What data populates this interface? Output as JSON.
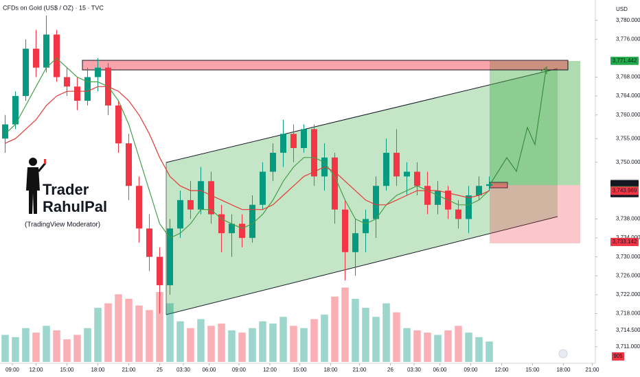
{
  "chart_data": {
    "type": "candlestick",
    "title": "CFDs on Gold (US$ / OZ) · 15 · TVC",
    "currency": "USD",
    "watermark": {
      "line1": "Trader",
      "line2": "RahulPal",
      "line3": "(TradingView Moderator)"
    },
    "up_color": "#089981",
    "down_color": "#f23645",
    "open": [
      3755,
      3758,
      3764,
      3774,
      3770,
      3777,
      3768,
      3766,
      3763,
      3768,
      3770,
      3762,
      3754,
      3745,
      3736,
      3730,
      3724,
      3736,
      3742,
      3740,
      3746,
      3739,
      3735,
      3737,
      3734,
      3741,
      3748,
      3752,
      3756,
      3753,
      3757,
      3747,
      3751,
      3740,
      3731,
      3735,
      3738,
      3745,
      3752,
      3747,
      3748,
      3745,
      3741,
      3744,
      3740,
      3738,
      3743,
      3745
    ],
    "high": [
      3760,
      3765,
      3776,
      3778,
      3781,
      3778,
      3770,
      3768,
      3770,
      3772,
      3771,
      3763,
      3756,
      3747,
      3739,
      3732,
      3738,
      3744,
      3746,
      3749,
      3748,
      3741,
      3739,
      3739,
      3743,
      3750,
      3754,
      3759,
      3758,
      3758,
      3758,
      3754,
      3752,
      3742,
      3738,
      3740,
      3747,
      3755,
      3757,
      3750,
      3750,
      3748,
      3746,
      3745,
      3742,
      3745,
      3747,
      3747
    ],
    "low": [
      3752,
      3757,
      3763,
      3768,
      3769,
      3767,
      3764,
      3761,
      3762,
      3765,
      3760,
      3752,
      3742,
      3733,
      3727,
      3718,
      3722,
      3734,
      3738,
      3739,
      3737,
      3731,
      3730,
      3732,
      3733,
      3740,
      3746,
      3749,
      3750,
      3752,
      3745,
      3744,
      3737,
      3725,
      3726,
      3731,
      3734,
      3744,
      3745,
      3743,
      3743,
      3739,
      3739,
      3738,
      3736,
      3735,
      3742,
      3744
    ],
    "close": [
      3758,
      3764,
      3774,
      3770,
      3777,
      3768,
      3766,
      3763,
      3768,
      3770,
      3762,
      3754,
      3745,
      3736,
      3730,
      3724,
      3736,
      3742,
      3740,
      3746,
      3739,
      3735,
      3737,
      3734,
      3741,
      3748,
      3752,
      3756,
      3753,
      3757,
      3747,
      3751,
      3740,
      3731,
      3735,
      3738,
      3745,
      3752,
      3747,
      3748,
      3745,
      3741,
      3744,
      3740,
      3738,
      3743,
      3745,
      3745.36
    ],
    "volume": [
      1200,
      1100,
      1500,
      1300,
      1600,
      1400,
      1000,
      1200,
      1500,
      2400,
      2600,
      3000,
      2800,
      2500,
      2300,
      3100,
      2600,
      1800,
      1500,
      1900,
      1600,
      1700,
      1400,
      1300,
      1500,
      1800,
      1700,
      2000,
      1600,
      1500,
      1900,
      2100,
      2900,
      3300,
      2800,
      2400,
      2000,
      2600,
      2200,
      1500,
      1400,
      1300,
      1200,
      1400,
      1600,
      1300,
      1100,
      905
    ],
    "volume_ylim": [
      0,
      3800
    ],
    "series": [
      {
        "color": "#43a047",
        "values": [
          3756,
          3758,
          3762,
          3766,
          3770,
          3772,
          3770,
          3768,
          3767,
          3767,
          3766,
          3763,
          3758,
          3751,
          3744,
          3737,
          3734,
          3735,
          3737,
          3740,
          3740,
          3738,
          3737,
          3736,
          3737,
          3739,
          3742,
          3746,
          3749,
          3751,
          3751,
          3750,
          3747,
          3742,
          3738,
          3737,
          3738,
          3741,
          3743,
          3744,
          3745,
          3744,
          3743,
          3742,
          3741,
          3741,
          3742,
          3744.056
        ]
      },
      {
        "color": "#e53935",
        "values": [
          3754,
          3755,
          3757,
          3759,
          3762,
          3764,
          3765,
          3765,
          3765,
          3766,
          3766,
          3765,
          3763,
          3760,
          3756,
          3751,
          3747,
          3745,
          3744,
          3744,
          3743,
          3742,
          3741,
          3740,
          3740,
          3740,
          3741,
          3743,
          3745,
          3747,
          3748,
          3749,
          3748,
          3746,
          3744,
          3742,
          3741,
          3741,
          3742,
          3743,
          3744,
          3744,
          3744,
          3743.5,
          3743,
          3742.5,
          3743,
          3743.969
        ]
      }
    ],
    "xlim": [
      0,
      57.8
    ],
    "xticks": [
      {
        "value": 1.2,
        "label": "09:00"
      },
      {
        "value": 3.5,
        "label": "12:00"
      },
      {
        "value": 6.5,
        "label": "15:00"
      },
      {
        "value": 9.5,
        "label": "18:00"
      },
      {
        "value": 12.5,
        "label": "21:00"
      },
      {
        "value": 15.5,
        "label": "25"
      },
      {
        "value": 17.8,
        "label": "03:30"
      },
      {
        "value": 20.3,
        "label": "06:00"
      },
      {
        "value": 23.2,
        "label": "09:00"
      },
      {
        "value": 26.2,
        "label": "12:00"
      },
      {
        "value": 29.1,
        "label": "15:00"
      },
      {
        "value": 32.1,
        "label": "18:00"
      },
      {
        "value": 34.9,
        "label": "21:00"
      },
      {
        "value": 37.9,
        "label": "26"
      },
      {
        "value": 40.2,
        "label": "03:30"
      },
      {
        "value": 42.7,
        "label": "06:00"
      },
      {
        "value": 45.7,
        "label": "09:00"
      },
      {
        "value": 48.7,
        "label": "12:00"
      },
      {
        "value": 51.7,
        "label": "15:00"
      },
      {
        "value": 54.7,
        "label": "18:00"
      },
      {
        "value": 57.5,
        "label": "21:00"
      }
    ],
    "ylim": [
      3707.5,
      3784.3
    ],
    "yticks": [
      {
        "value": 3780,
        "label": "3,780.000"
      },
      {
        "value": 3776,
        "label": "3,776.000"
      },
      {
        "value": 3768,
        "label": "3,768.000"
      },
      {
        "value": 3764,
        "label": "3,764.000"
      },
      {
        "value": 3760,
        "label": "3,760.000"
      },
      {
        "value": 3755,
        "label": "3,755.000"
      },
      {
        "value": 3750,
        "label": "3,750.000"
      },
      {
        "value": 3738,
        "label": "3,738.000"
      },
      {
        "value": 3734,
        "label": "3,734.000"
      },
      {
        "value": 3730,
        "label": "3,730.000"
      },
      {
        "value": 3726,
        "label": "3,726.000"
      },
      {
        "value": 3722,
        "label": "3,722.000"
      },
      {
        "value": 3718,
        "label": "3,718.000"
      },
      {
        "value": 3714.5,
        "label": "3,714.500"
      },
      {
        "value": 3711,
        "label": "3,711.000"
      }
    ],
    "price_labels": [
      {
        "value": 3771.442,
        "label": "3,771.442",
        "color": "#22ab4a"
      },
      {
        "value": 3745.554,
        "label": "3,745.554",
        "color": "#d1d4dc"
      },
      {
        "value": 3745.36,
        "label": "3,745.360",
        "color": "#131722"
      },
      {
        "value": 3744.056,
        "label": "3,744.056",
        "color": "#22ab4a"
      },
      {
        "value": 3743.969,
        "label": "3,743.969",
        "color": "#f23645"
      },
      {
        "value": 3733.142,
        "label": "3,733.142",
        "color": "#f23645"
      }
    ],
    "countdown": "13:21"
  }
}
